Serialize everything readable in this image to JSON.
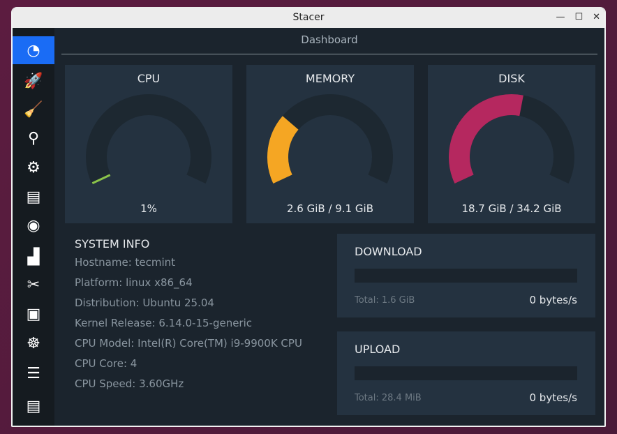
{
  "window": {
    "title": "Stacer",
    "controls": {
      "minimize": "—",
      "maximize": "☐",
      "close": "✕"
    }
  },
  "sidebar": {
    "items": [
      {
        "name": "dashboard",
        "icon": "speedometer-icon",
        "glyph": "◔",
        "active": true
      },
      {
        "name": "startup-apps",
        "icon": "rocket-icon",
        "glyph": "🚀"
      },
      {
        "name": "system-cleaner",
        "icon": "broom-icon",
        "glyph": "🧹"
      },
      {
        "name": "search",
        "icon": "magnifier-icon",
        "glyph": "⚲"
      },
      {
        "name": "services",
        "icon": "gears-icon",
        "glyph": "⚙"
      },
      {
        "name": "processes",
        "icon": "window-stack-icon",
        "glyph": "▤"
      },
      {
        "name": "uninstaller",
        "icon": "disk-box-icon",
        "glyph": "◉"
      },
      {
        "name": "resources",
        "icon": "chart-icon",
        "glyph": "▟"
      },
      {
        "name": "helpers",
        "icon": "tools-icon",
        "glyph": "✂"
      },
      {
        "name": "apt-repository",
        "icon": "box-icon",
        "glyph": "▣"
      },
      {
        "name": "gnome-settings",
        "icon": "gnome-foot-icon",
        "glyph": "☸"
      },
      {
        "name": "settings",
        "icon": "sliders-icon",
        "glyph": "☰"
      },
      {
        "name": "feedback",
        "icon": "message-icon",
        "glyph": "▤"
      }
    ]
  },
  "dashboard": {
    "title": "Dashboard"
  },
  "gauges": [
    {
      "label": "CPU",
      "value_text": "1%",
      "percent": 1,
      "color": "#8bc34a"
    },
    {
      "label": "MEMORY",
      "value_text": "2.6 GiB / 9.1 GiB",
      "percent": 28.6,
      "color": "#f5a623"
    },
    {
      "label": "DISK",
      "value_text": "18.7 GiB / 34.2 GiB",
      "percent": 54.7,
      "color": "#b5285f"
    }
  ],
  "system_info": {
    "title": "SYSTEM INFO",
    "lines": [
      "Hostname: tecmint",
      "Platform: linux x86_64",
      "Distribution: Ubuntu 25.04",
      "Kernel Release: 6.14.0-15-generic",
      "CPU Model: Intel(R) Core(TM) i9-9900K CPU",
      "CPU Core: 4",
      "CPU Speed: 3.60GHz"
    ]
  },
  "network": {
    "download": {
      "label": "DOWNLOAD",
      "total": "Total: 1.6 GiB",
      "speed": "0 bytes/s",
      "percent": 0
    },
    "upload": {
      "label": "UPLOAD",
      "total": "Total: 28.4 MiB",
      "speed": "0 bytes/s",
      "percent": 0
    }
  },
  "colors": {
    "accent": "#1a6cf5",
    "track": "#1d2831",
    "panel": "#243240"
  }
}
